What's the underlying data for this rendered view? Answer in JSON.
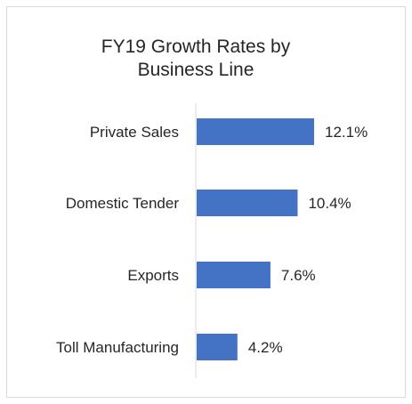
{
  "chart_data": {
    "type": "bar",
    "orientation": "horizontal",
    "title_lines": [
      "FY19 Growth Rates by",
      "Business Line"
    ],
    "categories": [
      "Private Sales",
      "Domestic Tender",
      "Exports",
      "Toll Manufacturing"
    ],
    "values": [
      12.1,
      10.4,
      7.6,
      4.2
    ],
    "value_labels": [
      "12.1%",
      "10.4%",
      "7.6%",
      "4.2%"
    ],
    "unit": "%",
    "xlim": [
      0,
      14
    ],
    "grid": false,
    "legend": "none",
    "bar_color": "#4472c4"
  }
}
